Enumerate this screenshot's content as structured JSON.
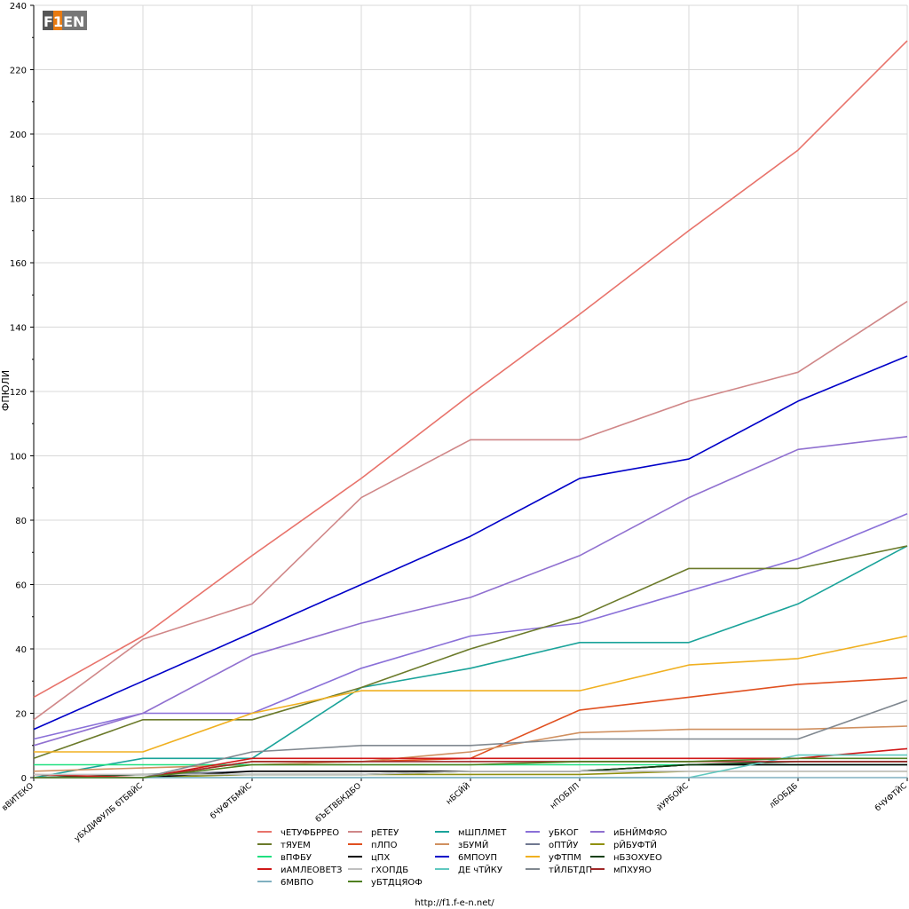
{
  "logo": {
    "text": "F1EN"
  },
  "footer": {
    "url": "http://f1.f-e-n.net/"
  },
  "chart_data": {
    "type": "line",
    "ylabel": "ФПЮЛИ",
    "ylim": [
      0,
      240
    ],
    "yticks": [
      0,
      20,
      40,
      60,
      80,
      100,
      120,
      140,
      160,
      180,
      200,
      220,
      240
    ],
    "grid": true,
    "legend_position": "bottom",
    "categories": [
      "вВИТЕКО",
      "уБХДИФУЛБ бТБВЙС",
      "бЧУФТБМЙС",
      "бЪЕТВБКДБО",
      "нБСЙЙ",
      "нПОБЛП",
      "йУРБОЙС",
      "лБОБДБ",
      "бЧУФТЙС"
    ],
    "series": [
      {
        "name": "чЕТУФБРРЕО",
        "color": "#e8736b",
        "values": [
          25,
          44,
          69,
          93,
          119,
          144,
          170,
          195,
          229
        ]
      },
      {
        "name": "рЕТЕУ",
        "color": "#d08788",
        "values": [
          18,
          43,
          54,
          87,
          105,
          105,
          117,
          126,
          148
        ]
      },
      {
        "name": "мШПЛМЕТ",
        "color": "#1aa39a",
        "values": [
          0,
          6,
          6,
          28,
          34,
          42,
          42,
          54,
          72
        ]
      },
      {
        "name": "уБКОГ",
        "color": "#8a70d8",
        "values": [
          12,
          20,
          20,
          34,
          44,
          48,
          58,
          68,
          82
        ]
      },
      {
        "name": "иБНЙМФЯО",
        "color": "#9070d0",
        "values": [
          10,
          20,
          38,
          48,
          56,
          69,
          87,
          102,
          106
        ]
      },
      {
        "name": "тЯУЕМ",
        "color": "#6b7a2a",
        "values": [
          6,
          18,
          18,
          28,
          40,
          50,
          65,
          65,
          72
        ]
      },
      {
        "name": "пЛПО",
        "color": "#e05020",
        "values": [
          0,
          0,
          5,
          5,
          6,
          21,
          25,
          29,
          31
        ]
      },
      {
        "name": "зБУМЙ",
        "color": "#d09060",
        "values": [
          2,
          3,
          4,
          5,
          8,
          14,
          15,
          15,
          16
        ]
      },
      {
        "name": "оПТЙУ",
        "color": "#707890",
        "values": [
          0,
          1,
          2,
          2,
          2,
          2,
          4,
          4,
          4
        ]
      },
      {
        "name": "рЙБУФТЙ",
        "color": "#909010",
        "values": [
          0,
          0,
          1,
          1,
          1,
          1,
          2,
          2,
          2
        ]
      },
      {
        "name": "вПФБУ",
        "color": "#20e080",
        "values": [
          4,
          4,
          4,
          4,
          4,
          4,
          4,
          4,
          4
        ]
      },
      {
        "name": "цПХ",
        "color": "#000000",
        "values": [
          0,
          0,
          2,
          2,
          2,
          2,
          4,
          4,
          4
        ]
      },
      {
        "name": "6МПОУП",
        "color": "#0000c8",
        "values": [
          15,
          30,
          45,
          60,
          75,
          93,
          99,
          117,
          131
        ]
      },
      {
        "name": "уФТПМ",
        "color": "#f0b020",
        "values": [
          8,
          8,
          20,
          27,
          27,
          27,
          35,
          37,
          44
        ]
      },
      {
        "name": "нБЗОХУЕО",
        "color": "#104010",
        "values": [
          0,
          1,
          1,
          1,
          2,
          2,
          4,
          5,
          5
        ]
      },
      {
        "name": "иАМЛЕОВЕТЗ",
        "color": "#d01818",
        "values": [
          1,
          0,
          6,
          6,
          6,
          6,
          6,
          6,
          9
        ]
      },
      {
        "name": "гХОПДБ",
        "color": "#c0c0c0",
        "values": [
          1,
          1,
          1,
          1,
          2,
          2,
          2,
          2,
          2
        ]
      },
      {
        "name": "ДЕ чТЙКУ",
        "color": "#60c8c0",
        "values": [
          0,
          0,
          0,
          0,
          0,
          0,
          0,
          7,
          7
        ]
      },
      {
        "name": "тЙЛБТДП",
        "color": "#808890",
        "values": [
          0,
          0,
          8,
          10,
          10,
          12,
          12,
          12,
          24
        ]
      },
      {
        "name": "мПХУЯО",
        "color": "#a02828",
        "values": [
          0,
          0,
          5,
          5,
          5,
          5,
          5,
          5,
          5
        ]
      },
      {
        "name": "6МВПО",
        "color": "#80b0c0",
        "values": [
          0,
          0,
          0,
          0,
          0,
          0,
          0,
          0,
          0
        ]
      },
      {
        "name": "уБТДЦЯОФ",
        "color": "#508020",
        "values": [
          0,
          0,
          4,
          4,
          4,
          5,
          5,
          6,
          6
        ]
      }
    ]
  }
}
